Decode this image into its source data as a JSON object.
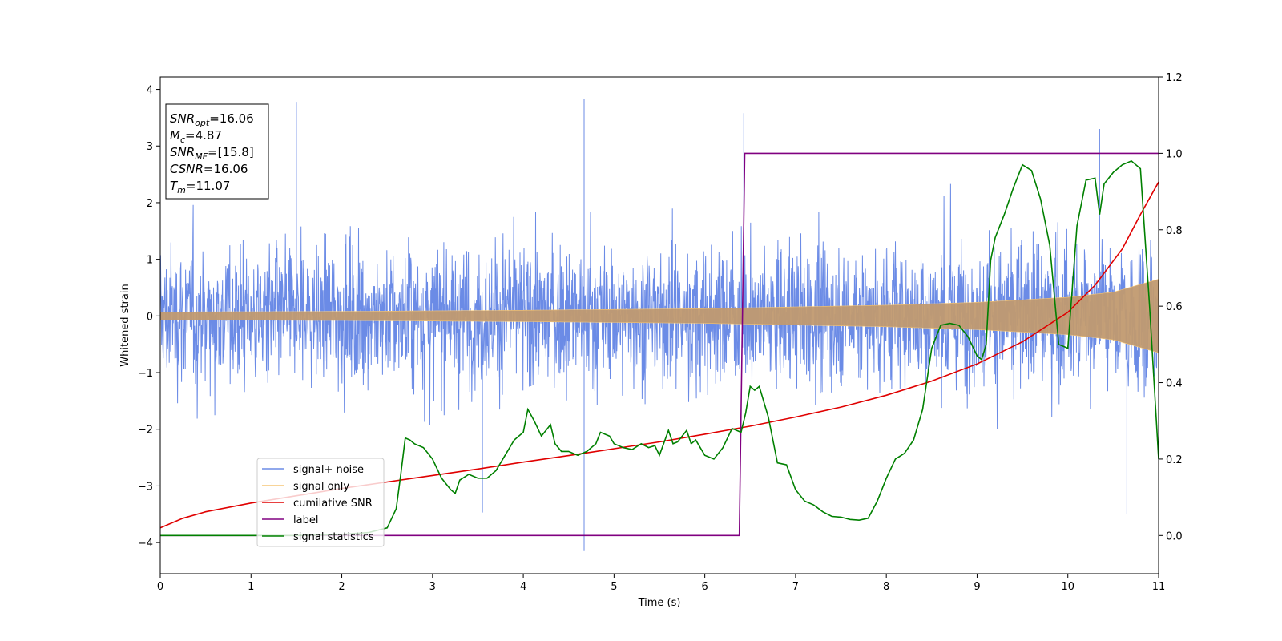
{
  "chart_data": {
    "type": "line",
    "xlabel": "Time (s)",
    "ylabel": "Whitened strain",
    "xlim": [
      0,
      11
    ],
    "ylim": [
      -4.55,
      4.22
    ],
    "y2lim": [
      -0.1,
      1.2
    ],
    "x_ticks": [
      "0",
      "1",
      "2",
      "3",
      "4",
      "5",
      "6",
      "7",
      "8",
      "9",
      "10",
      "11"
    ],
    "y_ticks": [
      "−4",
      "−3",
      "−2",
      "−1",
      "0",
      "1",
      "2",
      "3",
      "4"
    ],
    "y2_ticks": [
      "0.0",
      "0.2",
      "0.4",
      "0.6",
      "0.8",
      "1.0",
      "1.2"
    ],
    "grid": false,
    "legend_position": "lower-left",
    "series": [
      {
        "name": "signal+ noise",
        "axis": "left",
        "color": "#6b8be6",
        "description_values": {
          "typical_band": [
            -2.0,
            2.0
          ],
          "peaks": [
            [
              1.5,
              3.78
            ],
            [
              3.55,
              -3.47
            ],
            [
              4.67,
              3.83
            ],
            [
              4.67,
              -4.15
            ],
            [
              6.43,
              3.58
            ],
            [
              10.35,
              3.3
            ],
            [
              10.65,
              -3.5
            ]
          ]
        }
      },
      {
        "name": "signal only",
        "axis": "left",
        "color": "#f5c676",
        "amplitude_envelope": {
          "x": [
            0,
            2,
            4,
            6,
            8,
            9,
            10,
            10.5,
            11
          ],
          "y": [
            0.07,
            0.08,
            0.1,
            0.13,
            0.19,
            0.24,
            0.33,
            0.42,
            0.65
          ]
        }
      },
      {
        "name": "cumilative SNR",
        "axis": "right",
        "color": "#e00000",
        "x": [
          0,
          0.25,
          0.5,
          1,
          1.5,
          2,
          2.5,
          3,
          3.5,
          4,
          4.5,
          5,
          5.5,
          6,
          6.5,
          7,
          7.5,
          8,
          8.5,
          9,
          9.5,
          10,
          10.3,
          10.6,
          10.8,
          11
        ],
        "y": [
          0.02,
          0.045,
          0.062,
          0.085,
          0.104,
          0.123,
          0.14,
          0.157,
          0.174,
          0.192,
          0.209,
          0.227,
          0.245,
          0.265,
          0.286,
          0.31,
          0.336,
          0.367,
          0.404,
          0.449,
          0.507,
          0.584,
          0.655,
          0.75,
          0.84,
          0.925
        ]
      },
      {
        "name": "label",
        "axis": "right",
        "color": "#800080",
        "x": [
          0,
          6.38,
          6.44,
          11
        ],
        "y": [
          0.0,
          0.0,
          1.0,
          1.0
        ]
      },
      {
        "name": "signal statistics",
        "axis": "right",
        "color": "#008000",
        "x": [
          0,
          0.5,
          1,
          1.5,
          2,
          2.3,
          2.5,
          2.6,
          2.65,
          2.7,
          2.75,
          2.8,
          2.9,
          3.0,
          3.1,
          3.2,
          3.25,
          3.3,
          3.4,
          3.5,
          3.6,
          3.7,
          3.8,
          3.9,
          4.0,
          4.05,
          4.12,
          4.2,
          4.3,
          4.35,
          4.42,
          4.5,
          4.6,
          4.7,
          4.8,
          4.85,
          4.95,
          5.0,
          5.1,
          5.2,
          5.3,
          5.38,
          5.45,
          5.5,
          5.6,
          5.65,
          5.7,
          5.8,
          5.85,
          5.9,
          6.0,
          6.1,
          6.2,
          6.3,
          6.4,
          6.45,
          6.5,
          6.55,
          6.6,
          6.7,
          6.8,
          6.9,
          7.0,
          7.1,
          7.2,
          7.3,
          7.4,
          7.5,
          7.6,
          7.7,
          7.8,
          7.9,
          8.0,
          8.1,
          8.2,
          8.3,
          8.4,
          8.5,
          8.6,
          8.7,
          8.8,
          8.9,
          9.0,
          9.05,
          9.1,
          9.15,
          9.2,
          9.3,
          9.4,
          9.5,
          9.6,
          9.7,
          9.8,
          9.9,
          10.0,
          10.1,
          10.2,
          10.3,
          10.35,
          10.4,
          10.5,
          10.6,
          10.7,
          10.8,
          10.9,
          11.0
        ],
        "y": [
          0.0,
          0.0,
          0.0,
          0.0,
          0.003,
          0.008,
          0.02,
          0.07,
          0.16,
          0.255,
          0.25,
          0.24,
          0.23,
          0.2,
          0.15,
          0.12,
          0.11,
          0.145,
          0.16,
          0.15,
          0.15,
          0.17,
          0.21,
          0.25,
          0.27,
          0.33,
          0.3,
          0.26,
          0.29,
          0.24,
          0.22,
          0.22,
          0.21,
          0.22,
          0.24,
          0.27,
          0.26,
          0.24,
          0.23,
          0.225,
          0.24,
          0.23,
          0.235,
          0.21,
          0.275,
          0.24,
          0.245,
          0.275,
          0.24,
          0.25,
          0.21,
          0.2,
          0.23,
          0.28,
          0.27,
          0.32,
          0.39,
          0.38,
          0.39,
          0.31,
          0.19,
          0.185,
          0.12,
          0.09,
          0.08,
          0.062,
          0.05,
          0.048,
          0.042,
          0.04,
          0.045,
          0.09,
          0.15,
          0.2,
          0.215,
          0.25,
          0.33,
          0.49,
          0.55,
          0.555,
          0.55,
          0.52,
          0.47,
          0.46,
          0.5,
          0.72,
          0.78,
          0.84,
          0.91,
          0.97,
          0.955,
          0.88,
          0.76,
          0.5,
          0.49,
          0.81,
          0.93,
          0.935,
          0.84,
          0.92,
          0.95,
          0.97,
          0.98,
          0.96,
          0.6,
          0.2
        ]
      }
    ],
    "annotation_lines": [
      {
        "label": "SNR",
        "sub": "opt",
        "value": "=16.06"
      },
      {
        "label": "M",
        "sub": "c",
        "value": "=4.87"
      },
      {
        "label": "SNR",
        "sub": "MF",
        "value": "=[15.8]"
      },
      {
        "label": "CSNR",
        "sub": "",
        "value": "=16.06"
      },
      {
        "label": "T",
        "sub": "m",
        "value": "=11.07"
      }
    ]
  }
}
